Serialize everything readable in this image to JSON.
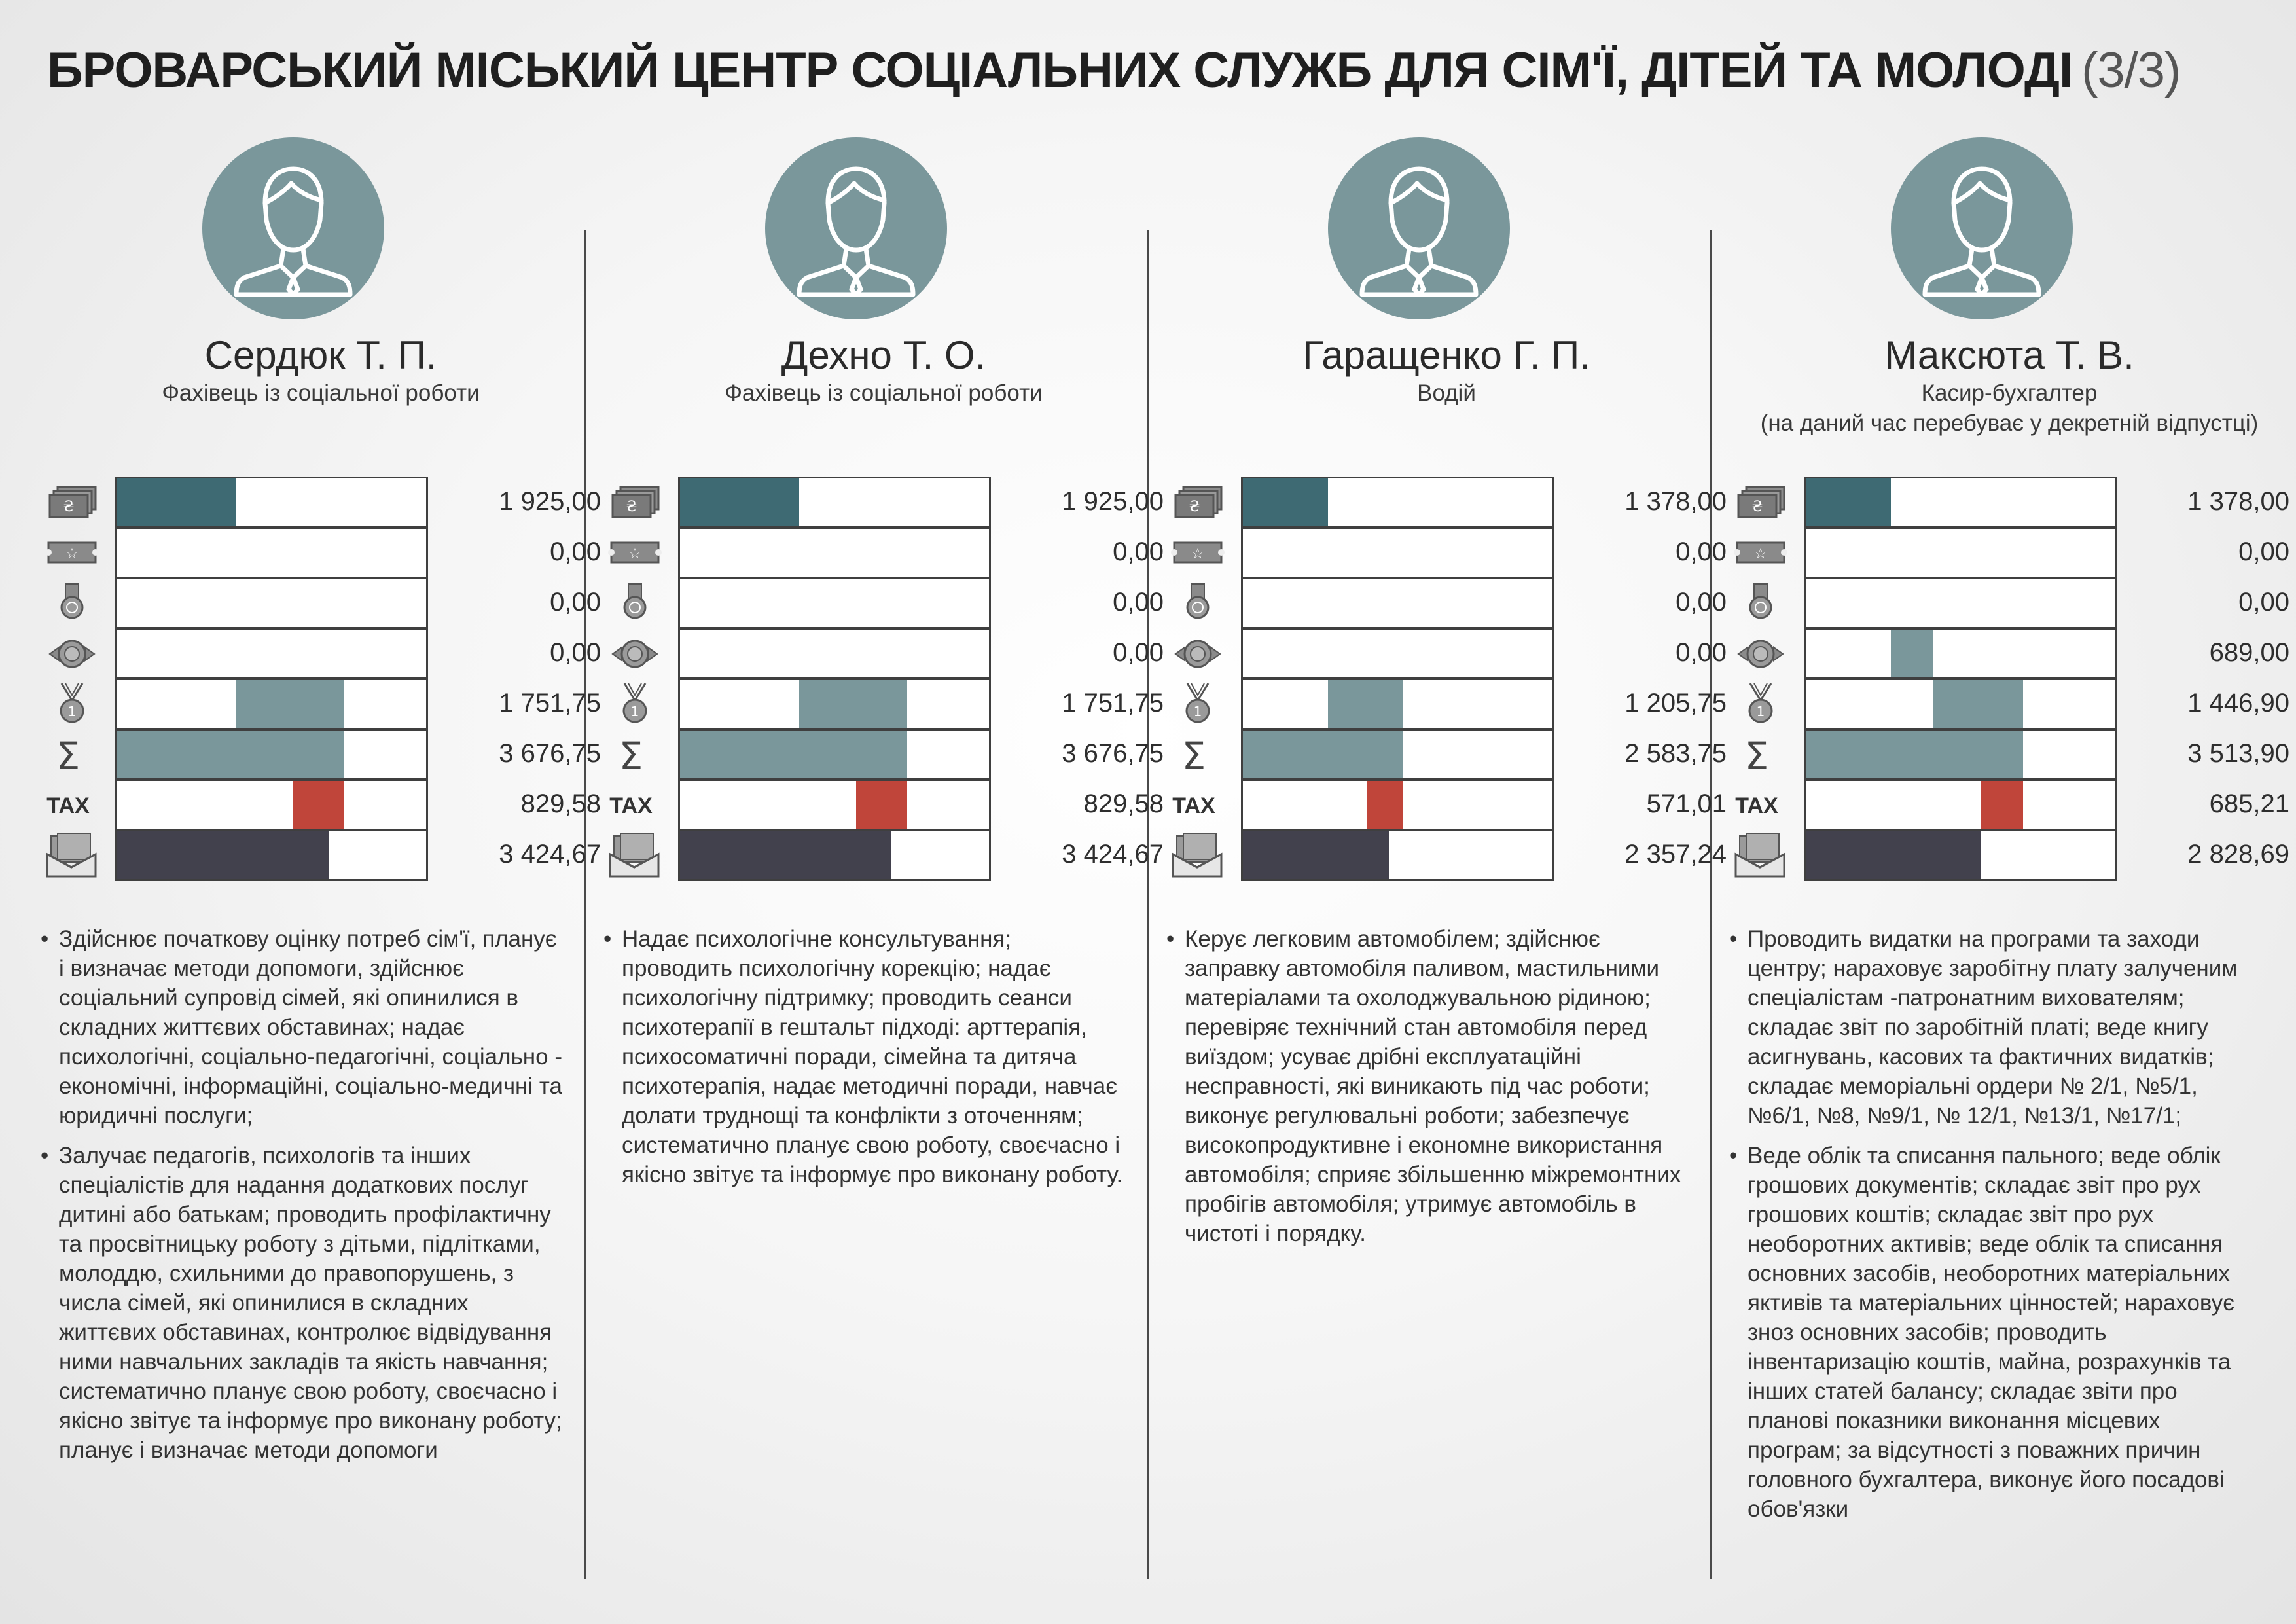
{
  "page": {
    "title": "БРОВАРСЬКИЙ МІСЬКИЙ ЦЕНТР СОЦІАЛЬНИХ СЛУЖБ ДЛЯ СІМ'Ї, ДІТЕЙ ТА МОЛОДІ",
    "title_suffix": "(3/3)"
  },
  "colors": {
    "salary": "#3e6a73",
    "bonus": "#7a979b",
    "sum": "#7a979b",
    "tax": "#c0453a",
    "net": "#42414d",
    "avatar": "#7a979b"
  },
  "icons": [
    "money-icon",
    "bonus-ticket-icon",
    "medal-icon",
    "award-badge-icon",
    "premium-medal-icon",
    "sum-icon",
    "tax-icon",
    "envelope-money-icon"
  ],
  "tax_label": "TAX",
  "chart_data": {
    "type": "bar",
    "layout": "small-multiples",
    "categories": [
      "money-icon",
      "bonus-ticket-icon",
      "medal-icon",
      "award-badge-icon",
      "premium-medal-icon",
      "sum-icon",
      "TAX",
      "envelope-money-icon"
    ],
    "scale_max": 5000,
    "employees": [
      {
        "name": "Сердюк Т. П.",
        "role": [
          "Фахівець із соціальної роботи"
        ],
        "values": [
          1925.0,
          0.0,
          0.0,
          0.0,
          1751.75,
          3676.75,
          829.58,
          3424.67
        ],
        "labels": [
          "1 925,00",
          "0,00",
          "0,00",
          "0,00",
          "1 751,75",
          "3 676,75",
          "829,58",
          "3 424,67"
        ],
        "duties": [
          "Здійснює початкову оцінку потреб сім'ї, планує і визначає методи допомоги, здійснює соціальний супровід сімей, які опинилися в складних життєвих обставинах; надає психологічні, соціально-педагогічні, соціально - економічні, інформаційні, соціально-медичні та юридичні послуги;",
          "Залучає педагогів, психологів та інших спеціалістів для надання додаткових послуг дитині або батькам; проводить профілактичну та просвітницьку роботу з дітьми, підлітками, молоддю, схильними до правопорушень, з числа сімей, які опинилися в складних життєвих обставинах, контролює відвідування ними навчальних закладів та якість навчання; систематично планує свою роботу, своєчасно і якісно звітує та інформує про виконану роботу; планує і визначає методи допомоги"
        ]
      },
      {
        "name": "Дехно Т. О.",
        "role": [
          "Фахівець із соціальної роботи"
        ],
        "values": [
          1925.0,
          0.0,
          0.0,
          0.0,
          1751.75,
          3676.75,
          829.58,
          3424.67
        ],
        "labels": [
          "1 925,00",
          "0,00",
          "0,00",
          "0,00",
          "1 751,75",
          "3 676,75",
          "829,58",
          "3 424,67"
        ],
        "duties": [
          "Надає психологічне консультування; проводить психологічну корекцію; надає психологічну підтримку; проводить сеанси психотерапії в гештальт підході: арттерапія, психосоматичні поради, сімейна та дитяча психотерапія, надає методичні поради, навчає долати труднощі та конфлікти з оточенням; систематично планує свою роботу, своєчасно і якісно звітує та інформує про виконану роботу."
        ]
      },
      {
        "name": "Гаращенко Г. П.",
        "role": [
          "Водій"
        ],
        "values": [
          1378.0,
          0.0,
          0.0,
          0.0,
          1205.75,
          2583.75,
          571.01,
          2357.24
        ],
        "labels": [
          "1 378,00",
          "0,00",
          "0,00",
          "0,00",
          "1 205,75",
          "2 583,75",
          "571,01",
          "2 357,24"
        ],
        "duties": [
          "Керує легковим автомобілем; здійснює заправку автомобіля паливом, мастильними матеріалами та охолоджувальною рідиною; перевіряє технічний стан автомобіля перед виїздом; усуває дрібні експлуатаційні несправності, які виникають під час роботи; виконує регулювальні роботи; забезпечує високопродуктивне і економне використання автомобіля; сприяє збільшенню міжремонтних пробігів автомобіля; утримує автомобіль в чистоті і порядку."
        ]
      },
      {
        "name": "Максюта Т. В.",
        "role": [
          "Касир-бухгалтер",
          "(на даний час перебуває у декретній відпустці)"
        ],
        "values": [
          1378.0,
          0.0,
          0.0,
          689.0,
          1446.9,
          3513.9,
          685.21,
          2828.69
        ],
        "labels": [
          "1 378,00",
          "0,00",
          "0,00",
          "689,00",
          "1 446,90",
          "3 513,90",
          "685,21",
          "2 828,69"
        ],
        "duties": [
          "Проводить видатки на програми та заходи центру; нараховує заробітну плату залученим спеціалістам -патронатним вихователям; складає звіт по заробітній платі; веде книгу асигнувань, касових та фактичних видатків; складає меморіальні ордери № 2/1, №5/1, №6/1, №8, №9/1, № 12/1, №13/1, №17/1;",
          "Веде облік та списання пального; веде облік грошових документів; складає звіт про рух грошових коштів; складає звіт про рух необоротних активів; веде облік та списання основних засобів, необоротних матеріальних яктивів та матеріальних цінностей; нараховує зноз основних засобів; проводить інвентаризацію коштів, майна, розрахунків та інших статей балансу; складає звіти про планові показники виконання місцевих програм; за відсутності з поважних причин головного бухгалтера, виконує його посадові обов'язки"
        ]
      }
    ]
  }
}
